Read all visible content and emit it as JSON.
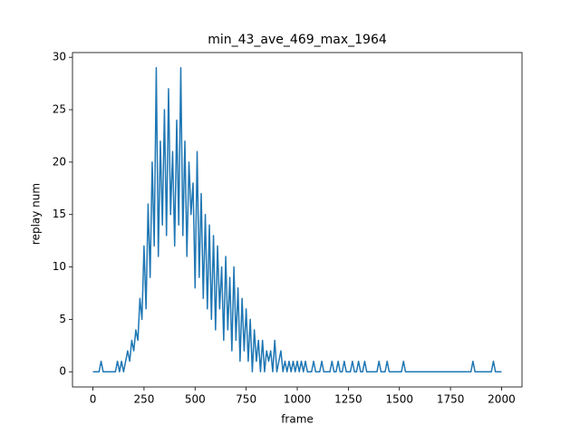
{
  "chart_data": {
    "type": "line",
    "title": "min_43_ave_469_max_1964",
    "xlabel": "frame",
    "ylabel": "replay num",
    "x": [
      0,
      10,
      20,
      30,
      40,
      50,
      60,
      70,
      80,
      90,
      100,
      110,
      120,
      130,
      140,
      150,
      160,
      170,
      180,
      190,
      200,
      210,
      220,
      230,
      240,
      250,
      260,
      270,
      280,
      290,
      300,
      310,
      320,
      330,
      340,
      350,
      360,
      370,
      380,
      390,
      400,
      410,
      420,
      430,
      440,
      450,
      460,
      470,
      480,
      490,
      500,
      510,
      520,
      530,
      540,
      550,
      560,
      570,
      580,
      590,
      600,
      610,
      620,
      630,
      640,
      650,
      660,
      670,
      680,
      690,
      700,
      710,
      720,
      730,
      740,
      750,
      760,
      770,
      780,
      790,
      800,
      810,
      820,
      830,
      840,
      850,
      860,
      870,
      880,
      890,
      900,
      910,
      920,
      930,
      940,
      950,
      960,
      970,
      980,
      990,
      1000,
      1010,
      1020,
      1030,
      1040,
      1050,
      1060,
      1070,
      1080,
      1090,
      1100,
      1110,
      1120,
      1130,
      1140,
      1150,
      1160,
      1170,
      1180,
      1190,
      1200,
      1210,
      1220,
      1230,
      1240,
      1250,
      1260,
      1270,
      1280,
      1290,
      1300,
      1310,
      1320,
      1330,
      1340,
      1350,
      1360,
      1370,
      1380,
      1390,
      1400,
      1410,
      1420,
      1430,
      1440,
      1450,
      1460,
      1470,
      1480,
      1490,
      1500,
      1510,
      1520,
      1530,
      1540,
      1550,
      1560,
      1570,
      1580,
      1590,
      1600,
      1610,
      1620,
      1630,
      1640,
      1650,
      1660,
      1670,
      1680,
      1690,
      1700,
      1710,
      1720,
      1730,
      1740,
      1750,
      1760,
      1770,
      1780,
      1790,
      1800,
      1810,
      1820,
      1830,
      1840,
      1850,
      1860,
      1870,
      1880,
      1890,
      1900,
      1910,
      1920,
      1930,
      1940,
      1950,
      1960,
      1970,
      1980,
      1990,
      2000
    ],
    "series": [
      {
        "name": "replay num",
        "color": "#1f77b4",
        "values": [
          0,
          0,
          0,
          0,
          1,
          0,
          0,
          0,
          0,
          0,
          0,
          0,
          1,
          0,
          1,
          0,
          1,
          2,
          1,
          3,
          2,
          4,
          3,
          7,
          5,
          12,
          6,
          16,
          9,
          20,
          12,
          29,
          11,
          22,
          14,
          25,
          13,
          27,
          15,
          21,
          12,
          24,
          14,
          29,
          13,
          22,
          11,
          20,
          15,
          18,
          8,
          21,
          9,
          17,
          7,
          15,
          6,
          14,
          5,
          13,
          4,
          12,
          6,
          10,
          3,
          11,
          4,
          9,
          2,
          10,
          3,
          8,
          1,
          7,
          2,
          6,
          1,
          5,
          0,
          4,
          1,
          3,
          0,
          3,
          0,
          2,
          1,
          2,
          0,
          3,
          0,
          1,
          2,
          0,
          1,
          0,
          1,
          0,
          1,
          0,
          1,
          0,
          1,
          0,
          1,
          0,
          0,
          0,
          1,
          0,
          0,
          0,
          1,
          0,
          0,
          0,
          0,
          1,
          0,
          0,
          1,
          0,
          0,
          1,
          0,
          0,
          0,
          1,
          0,
          0,
          1,
          0,
          0,
          1,
          0,
          0,
          0,
          0,
          0,
          0,
          1,
          0,
          0,
          0,
          1,
          0,
          0,
          0,
          0,
          0,
          0,
          0,
          1,
          0,
          0,
          0,
          0,
          0,
          0,
          0,
          0,
          0,
          0,
          0,
          0,
          0,
          0,
          0,
          0,
          0,
          0,
          0,
          0,
          0,
          0,
          0,
          0,
          0,
          0,
          0,
          0,
          0,
          0,
          0,
          0,
          0,
          1,
          0,
          0,
          0,
          0,
          0,
          0,
          0,
          0,
          0,
          1,
          0,
          0,
          0,
          0
        ]
      }
    ],
    "xlim": [
      -100,
      2100
    ],
    "ylim": [
      -1.45,
      30.45
    ],
    "xticks": [
      0,
      250,
      500,
      750,
      1000,
      1250,
      1500,
      1750,
      2000
    ],
    "yticks": [
      0,
      5,
      10,
      15,
      20,
      25,
      30
    ]
  }
}
